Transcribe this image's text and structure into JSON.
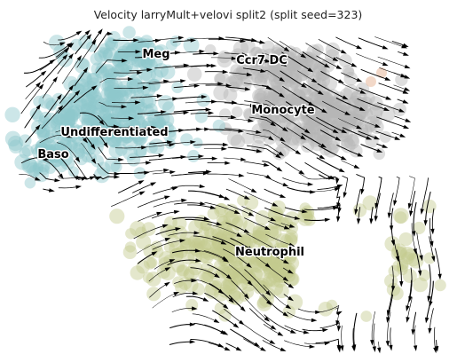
{
  "chart_data": {
    "type": "scatter",
    "title": "Velocity larryMult+velovi split2 (split seed=323)",
    "xlabel": "",
    "ylabel": "",
    "grid": false,
    "axes_visible": false,
    "legend": "on data",
    "colors": {
      "Undifferentiated": "#8fc7cc",
      "Monocyte": "#b5b5b5",
      "Neutrophil": "#c4c98d",
      "Baso": "#8fc7cc",
      "Meg": "#8fc7cc",
      "Ccr7_DC": "#b5b5b5",
      "accent": "#e8b89a",
      "arrow": "#000000"
    },
    "clusters": [
      {
        "name": "Meg",
        "label_xy": [
          176,
          61
        ],
        "center": [
          150,
          60
        ],
        "spread": [
          70,
          20
        ],
        "n": 60,
        "color": "#8fc7cc"
      },
      {
        "name": "Ccr7_DC",
        "display": "Ccr7 DC",
        "label_xy": [
          295,
          68
        ],
        "center": [
          320,
          75
        ],
        "spread": [
          80,
          22
        ],
        "n": 110,
        "color": "#b5b5b5"
      },
      {
        "name": "Monocyte",
        "label_xy": [
          319,
          124
        ],
        "center": [
          350,
          130
        ],
        "spread": [
          85,
          40
        ],
        "n": 260,
        "color": "#b5b5b5"
      },
      {
        "name": "Undifferentiated",
        "label_xy": [
          129,
          149
        ],
        "center": [
          120,
          130
        ],
        "spread": [
          90,
          55
        ],
        "n": 280,
        "color": "#8fc7cc"
      },
      {
        "name": "Baso",
        "label_xy": [
          60,
          174
        ],
        "center": [
          50,
          170
        ],
        "spread": [
          30,
          30
        ],
        "n": 50,
        "color": "#8fc7cc"
      },
      {
        "name": "Neutrophil",
        "label_xy": [
          304,
          284
        ],
        "center": [
          310,
          290
        ],
        "spread": [
          170,
          55
        ],
        "n": 320,
        "color": "#c4c98d"
      }
    ]
  }
}
